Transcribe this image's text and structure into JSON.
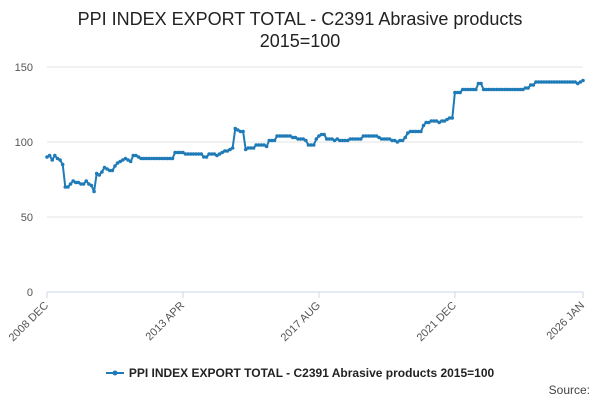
{
  "title_line1": "PPI INDEX EXPORT TOTAL - C2391 Abrasive products",
  "title_line2": "2015=100",
  "source_label": "Source:",
  "colors": {
    "series": "#1f7bb8",
    "grid": "#e3e3e3",
    "axis": "#ccd6eb",
    "tick_text": "#555555"
  },
  "chart_data": {
    "type": "line",
    "title": "PPI INDEX EXPORT TOTAL - C2391 Abrasive products 2015=100",
    "xlabel": "",
    "ylabel": "",
    "x_range": [
      "2008 DEC",
      "2026 JAN"
    ],
    "x_ticks": [
      "2008 DEC",
      "2013 APR",
      "2017 AUG",
      "2021 DEC",
      "2026 JAN"
    ],
    "y_ticks": [
      0,
      50,
      100,
      150
    ],
    "ylim": [
      0,
      150
    ],
    "grid": true,
    "legend_position": "bottom",
    "series": [
      {
        "name": "PPI INDEX EXPORT TOTAL - C2391 Abrasive products 2015=100",
        "points": [
          [
            "2008 DEC",
            90
          ],
          [
            "2009 JAN",
            91
          ],
          [
            "2009 FEB",
            88
          ],
          [
            "2009 MAR",
            91
          ],
          [
            "2009 APR",
            89
          ],
          [
            "2009 MAY",
            88
          ],
          [
            "2009 JUN",
            85
          ],
          [
            "2009 JUL",
            70
          ],
          [
            "2009 AUG",
            70
          ],
          [
            "2009 SEP",
            72
          ],
          [
            "2009 OCT",
            74
          ],
          [
            "2009 NOV",
            73
          ],
          [
            "2009 DEC",
            73
          ],
          [
            "2010 JAN",
            72
          ],
          [
            "2010 FEB",
            72
          ],
          [
            "2010 MAR",
            74
          ],
          [
            "2010 APR",
            72
          ],
          [
            "2010 MAY",
            71
          ],
          [
            "2010 JUN",
            67
          ],
          [
            "2010 JUL",
            79
          ],
          [
            "2010 AUG",
            78
          ],
          [
            "2010 SEP",
            80
          ],
          [
            "2010 OCT",
            83
          ],
          [
            "2010 NOV",
            82
          ],
          [
            "2010 DEC",
            81
          ],
          [
            "2011 JAN",
            81
          ],
          [
            "2011 FEB",
            84
          ],
          [
            "2011 MAR",
            86
          ],
          [
            "2011 APR",
            87
          ],
          [
            "2011 MAY",
            88
          ],
          [
            "2011 JUN",
            89
          ],
          [
            "2011 JUL",
            88
          ],
          [
            "2011 AUG",
            87
          ],
          [
            "2011 SEP",
            91
          ],
          [
            "2011 OCT",
            91
          ],
          [
            "2011 NOV",
            90
          ],
          [
            "2011 DEC",
            89
          ],
          [
            "2012 JAN",
            89
          ],
          [
            "2012 FEB",
            89
          ],
          [
            "2012 MAR",
            89
          ],
          [
            "2012 APR",
            89
          ],
          [
            "2012 MAY",
            89
          ],
          [
            "2012 JUN",
            89
          ],
          [
            "2012 JUL",
            89
          ],
          [
            "2012 AUG",
            89
          ],
          [
            "2012 SEP",
            89
          ],
          [
            "2012 OCT",
            89
          ],
          [
            "2012 NOV",
            89
          ],
          [
            "2012 DEC",
            89
          ],
          [
            "2013 JAN",
            93
          ],
          [
            "2013 FEB",
            93
          ],
          [
            "2013 MAR",
            93
          ],
          [
            "2013 APR",
            93
          ],
          [
            "2013 MAY",
            92
          ],
          [
            "2013 JUN",
            92
          ],
          [
            "2013 JUL",
            92
          ],
          [
            "2013 AUG",
            92
          ],
          [
            "2013 SEP",
            92
          ],
          [
            "2013 OCT",
            92
          ],
          [
            "2013 NOV",
            92
          ],
          [
            "2013 DEC",
            90
          ],
          [
            "2014 JAN",
            90
          ],
          [
            "2014 FEB",
            92
          ],
          [
            "2014 MAR",
            92
          ],
          [
            "2014 APR",
            92
          ],
          [
            "2014 MAY",
            91
          ],
          [
            "2014 JUN",
            92
          ],
          [
            "2014 JUL",
            93
          ],
          [
            "2014 AUG",
            94
          ],
          [
            "2014 SEP",
            94
          ],
          [
            "2014 OCT",
            95
          ],
          [
            "2014 NOV",
            96
          ],
          [
            "2014 DEC",
            109
          ],
          [
            "2015 JAN",
            108
          ],
          [
            "2015 FEB",
            107
          ],
          [
            "2015 MAR",
            107
          ],
          [
            "2015 APR",
            95
          ],
          [
            "2015 MAY",
            96
          ],
          [
            "2015 JUN",
            96
          ],
          [
            "2015 JUL",
            96
          ],
          [
            "2015 AUG",
            98
          ],
          [
            "2015 SEP",
            98
          ],
          [
            "2015 OCT",
            98
          ],
          [
            "2015 NOV",
            98
          ],
          [
            "2015 DEC",
            97
          ],
          [
            "2016 JAN",
            101
          ],
          [
            "2016 FEB",
            101
          ],
          [
            "2016 MAR",
            101
          ],
          [
            "2016 APR",
            104
          ],
          [
            "2016 MAY",
            104
          ],
          [
            "2016 JUN",
            104
          ],
          [
            "2016 JUL",
            104
          ],
          [
            "2016 AUG",
            104
          ],
          [
            "2016 SEP",
            104
          ],
          [
            "2016 OCT",
            103
          ],
          [
            "2016 NOV",
            103
          ],
          [
            "2016 DEC",
            102
          ],
          [
            "2017 JAN",
            102
          ],
          [
            "2017 FEB",
            102
          ],
          [
            "2017 MAR",
            101
          ],
          [
            "2017 APR",
            98
          ],
          [
            "2017 MAY",
            98
          ],
          [
            "2017 JUN",
            98
          ],
          [
            "2017 JUL",
            102
          ],
          [
            "2017 AUG",
            104
          ],
          [
            "2017 SEP",
            105
          ],
          [
            "2017 OCT",
            105
          ],
          [
            "2017 NOV",
            102
          ],
          [
            "2017 DEC",
            102
          ],
          [
            "2018 JAN",
            102
          ],
          [
            "2018 FEB",
            101
          ],
          [
            "2018 MAR",
            102
          ],
          [
            "2018 APR",
            101
          ],
          [
            "2018 MAY",
            101
          ],
          [
            "2018 JUN",
            101
          ],
          [
            "2018 JUL",
            101
          ],
          [
            "2018 AUG",
            102
          ],
          [
            "2018 SEP",
            102
          ],
          [
            "2018 OCT",
            102
          ],
          [
            "2018 NOV",
            102
          ],
          [
            "2018 DEC",
            102
          ],
          [
            "2019 JAN",
            104
          ],
          [
            "2019 FEB",
            104
          ],
          [
            "2019 MAR",
            104
          ],
          [
            "2019 APR",
            104
          ],
          [
            "2019 MAY",
            104
          ],
          [
            "2019 JUN",
            104
          ],
          [
            "2019 JUL",
            103
          ],
          [
            "2019 AUG",
            102
          ],
          [
            "2019 SEP",
            102
          ],
          [
            "2019 OCT",
            102
          ],
          [
            "2019 NOV",
            102
          ],
          [
            "2019 DEC",
            101
          ],
          [
            "2020 JAN",
            101
          ],
          [
            "2020 FEB",
            100
          ],
          [
            "2020 MAR",
            101
          ],
          [
            "2020 APR",
            101
          ],
          [
            "2020 MAY",
            103
          ],
          [
            "2020 JUN",
            106
          ],
          [
            "2020 JUL",
            107
          ],
          [
            "2020 AUG",
            107
          ],
          [
            "2020 SEP",
            107
          ],
          [
            "2020 OCT",
            107
          ],
          [
            "2020 NOV",
            107
          ],
          [
            "2020 DEC",
            111
          ],
          [
            "2021 JAN",
            113
          ],
          [
            "2021 FEB",
            113
          ],
          [
            "2021 MAR",
            114
          ],
          [
            "2021 APR",
            114
          ],
          [
            "2021 MAY",
            114
          ],
          [
            "2021 JUN",
            113
          ],
          [
            "2021 JUL",
            114
          ],
          [
            "2021 AUG",
            114
          ],
          [
            "2021 SEP",
            115
          ],
          [
            "2021 OCT",
            116
          ],
          [
            "2021 NOV",
            116
          ],
          [
            "2021 DEC",
            133
          ],
          [
            "2022 JAN",
            133
          ],
          [
            "2022 FEB",
            133
          ],
          [
            "2022 MAR",
            135
          ],
          [
            "2022 APR",
            135
          ],
          [
            "2022 MAY",
            135
          ],
          [
            "2022 JUN",
            135
          ],
          [
            "2022 JUL",
            135
          ],
          [
            "2022 AUG",
            135
          ],
          [
            "2022 SEP",
            139
          ],
          [
            "2022 OCT",
            139
          ],
          [
            "2022 NOV",
            135
          ],
          [
            "2022 DEC",
            135
          ],
          [
            "2023 JAN",
            135
          ],
          [
            "2023 FEB",
            135
          ],
          [
            "2023 MAR",
            135
          ],
          [
            "2023 APR",
            135
          ],
          [
            "2023 MAY",
            135
          ],
          [
            "2023 JUN",
            135
          ],
          [
            "2023 JUL",
            135
          ],
          [
            "2023 AUG",
            135
          ],
          [
            "2023 SEP",
            135
          ],
          [
            "2023 OCT",
            135
          ],
          [
            "2023 NOV",
            135
          ],
          [
            "2023 DEC",
            135
          ],
          [
            "2024 JAN",
            135
          ],
          [
            "2024 FEB",
            135
          ],
          [
            "2024 MAR",
            136
          ],
          [
            "2024 APR",
            136
          ],
          [
            "2024 MAY",
            138
          ],
          [
            "2024 JUN",
            138
          ],
          [
            "2024 JUL",
            140
          ],
          [
            "2024 AUG",
            140
          ],
          [
            "2024 SEP",
            140
          ],
          [
            "2024 OCT",
            140
          ],
          [
            "2024 NOV",
            140
          ],
          [
            "2024 DEC",
            140
          ],
          [
            "2025 JAN",
            140
          ],
          [
            "2025 FEB",
            140
          ],
          [
            "2025 MAR",
            140
          ],
          [
            "2025 APR",
            140
          ],
          [
            "2025 MAY",
            140
          ],
          [
            "2025 JUN",
            140
          ],
          [
            "2025 JUL",
            140
          ],
          [
            "2025 AUG",
            140
          ],
          [
            "2025 SEP",
            140
          ],
          [
            "2025 OCT",
            140
          ],
          [
            "2025 NOV",
            139
          ],
          [
            "2025 DEC",
            140
          ],
          [
            "2026 JAN",
            141
          ]
        ]
      }
    ]
  }
}
